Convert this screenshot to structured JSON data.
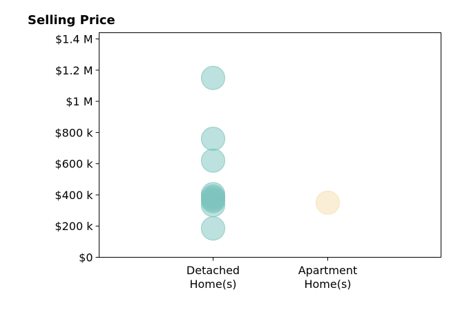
{
  "chart_data": {
    "type": "scatter",
    "title": "Selling Price",
    "xlabel": "",
    "ylabel": "",
    "ylim": [
      0,
      1440000
    ],
    "y_ticks": [
      {
        "value": 0,
        "label": "$0"
      },
      {
        "value": 200000,
        "label": "$200 k"
      },
      {
        "value": 400000,
        "label": "$400 k"
      },
      {
        "value": 600000,
        "label": "$600 k"
      },
      {
        "value": 800000,
        "label": "$800 k"
      },
      {
        "value": 1000000,
        "label": "$1 M"
      },
      {
        "value": 1200000,
        "label": "$1.2 M"
      },
      {
        "value": 1400000,
        "label": "$1.4 M"
      }
    ],
    "categories": [
      {
        "line1": "Detached",
        "line2": "Home(s)"
      },
      {
        "line1": "Apartment",
        "line2": "Home(s)"
      }
    ],
    "grid": false,
    "series": [
      {
        "category_index": 0,
        "color": "#7cc4bd",
        "values": [
          1150000,
          760000,
          620000,
          405000,
          390000,
          380000,
          370000,
          360000,
          335000,
          185000
        ]
      },
      {
        "category_index": 1,
        "color": "#f5deb0",
        "values": [
          350000
        ]
      }
    ]
  }
}
